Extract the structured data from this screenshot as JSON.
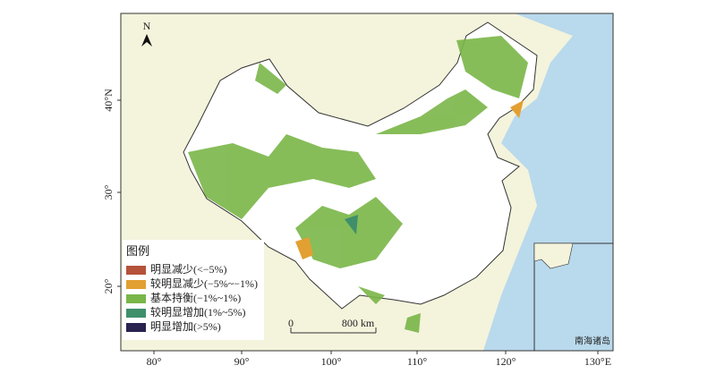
{
  "map": {
    "north": "N",
    "x_ticks": [
      "80°",
      "90°",
      "100°",
      "110°",
      "120°",
      "130°E"
    ],
    "y_ticks": [
      "40°N",
      "30°",
      "20°"
    ],
    "legend": {
      "title": "图例",
      "items": [
        {
          "label": "明显减少(<−5%)",
          "color": "#b5523a"
        },
        {
          "label": "较明显减少(−5%~−1%)",
          "color": "#e3a032"
        },
        {
          "label": "基本持衡(−1%~1%)",
          "color": "#7ab648"
        },
        {
          "label": "较明显增加(1%~5%)",
          "color": "#3f8f6b"
        },
        {
          "label": "明显增加(>5%)",
          "color": "#2a2350"
        }
      ]
    },
    "scale_bar": {
      "start": "0",
      "end": "800 km"
    },
    "inset": {
      "label": "南海诸岛"
    }
  }
}
